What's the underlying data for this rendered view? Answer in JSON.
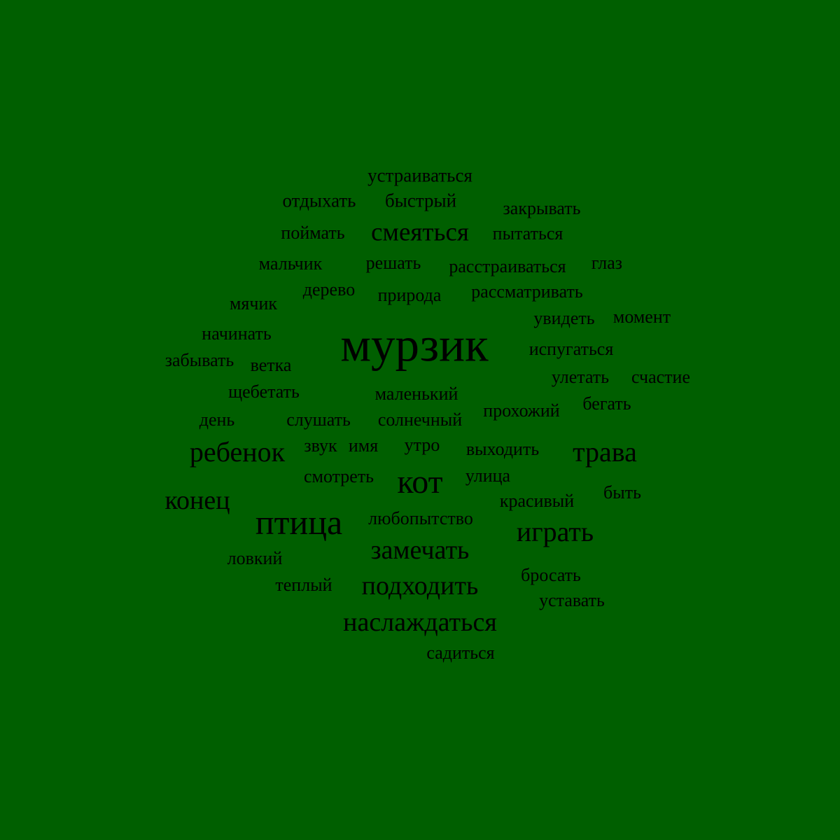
{
  "background_color": "#005f00",
  "text_color": "#000000",
  "words": [
    "устраиваться",
    "отдыхать",
    "быстрый",
    "закрывать",
    "поймать",
    "смеяться",
    "пытаться",
    "мальчик",
    "решать",
    "расстраиваться",
    "глаз",
    "дерево",
    "природа",
    "рассматривать",
    "мячик",
    "увидеть",
    "момент",
    "начинать",
    "мурзик",
    "испугаться",
    "забывать",
    "ветка",
    "улетать",
    "счастие",
    "щебетать",
    "маленький",
    "бегать",
    "прохожий",
    "день",
    "слушать",
    "солнечный",
    "ребенок",
    "звук",
    "имя",
    "утро",
    "выходить",
    "трава",
    "смотреть",
    "кот",
    "улица",
    "конец",
    "быть",
    "красивый",
    "птица",
    "любопытство",
    "играть",
    "замечать",
    "ловкий",
    "бросать",
    "теплый",
    "подходить",
    "уставать",
    "наслаждаться",
    "садиться"
  ]
}
